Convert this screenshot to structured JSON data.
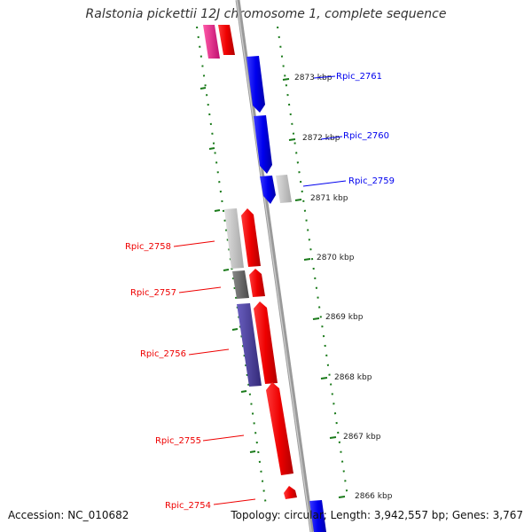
{
  "title": "Ralstonia pickettii 12J chromosome 1, complete sequence",
  "footer": {
    "accession": "Accession: NC_010682",
    "stats": "Topology: circular; Length: 3,942,557 bp; Genes: 3,767"
  },
  "colors": {
    "plus_strand": "#0000ee",
    "minus_strand": "#ee0000",
    "pink": "#e8288a",
    "grey_light": "#c0c0c0",
    "grey_dark": "#666666",
    "purple": "#4a3f94",
    "backbone": "#888888",
    "ticks": "#1a7a1a"
  },
  "scale_ticks": [
    {
      "label": "2873 kbp"
    },
    {
      "label": "2872 kbp"
    },
    {
      "label": "2871 kbp"
    },
    {
      "label": "2870 kbp"
    },
    {
      "label": "2869 kbp"
    },
    {
      "label": "2868 kbp"
    },
    {
      "label": "2867 kbp"
    },
    {
      "label": "2866 kbp"
    }
  ],
  "gene_labels": [
    {
      "name": "Rpic_2761",
      "strand": "plus"
    },
    {
      "name": "Rpic_2760",
      "strand": "plus"
    },
    {
      "name": "Rpic_2759",
      "strand": "plus"
    },
    {
      "name": "Rpic_2758",
      "strand": "minus"
    },
    {
      "name": "Rpic_2757",
      "strand": "minus"
    },
    {
      "name": "Rpic_2756",
      "strand": "minus"
    },
    {
      "name": "Rpic_2755",
      "strand": "minus"
    },
    {
      "name": "Rpic_2754",
      "strand": "minus"
    }
  ]
}
